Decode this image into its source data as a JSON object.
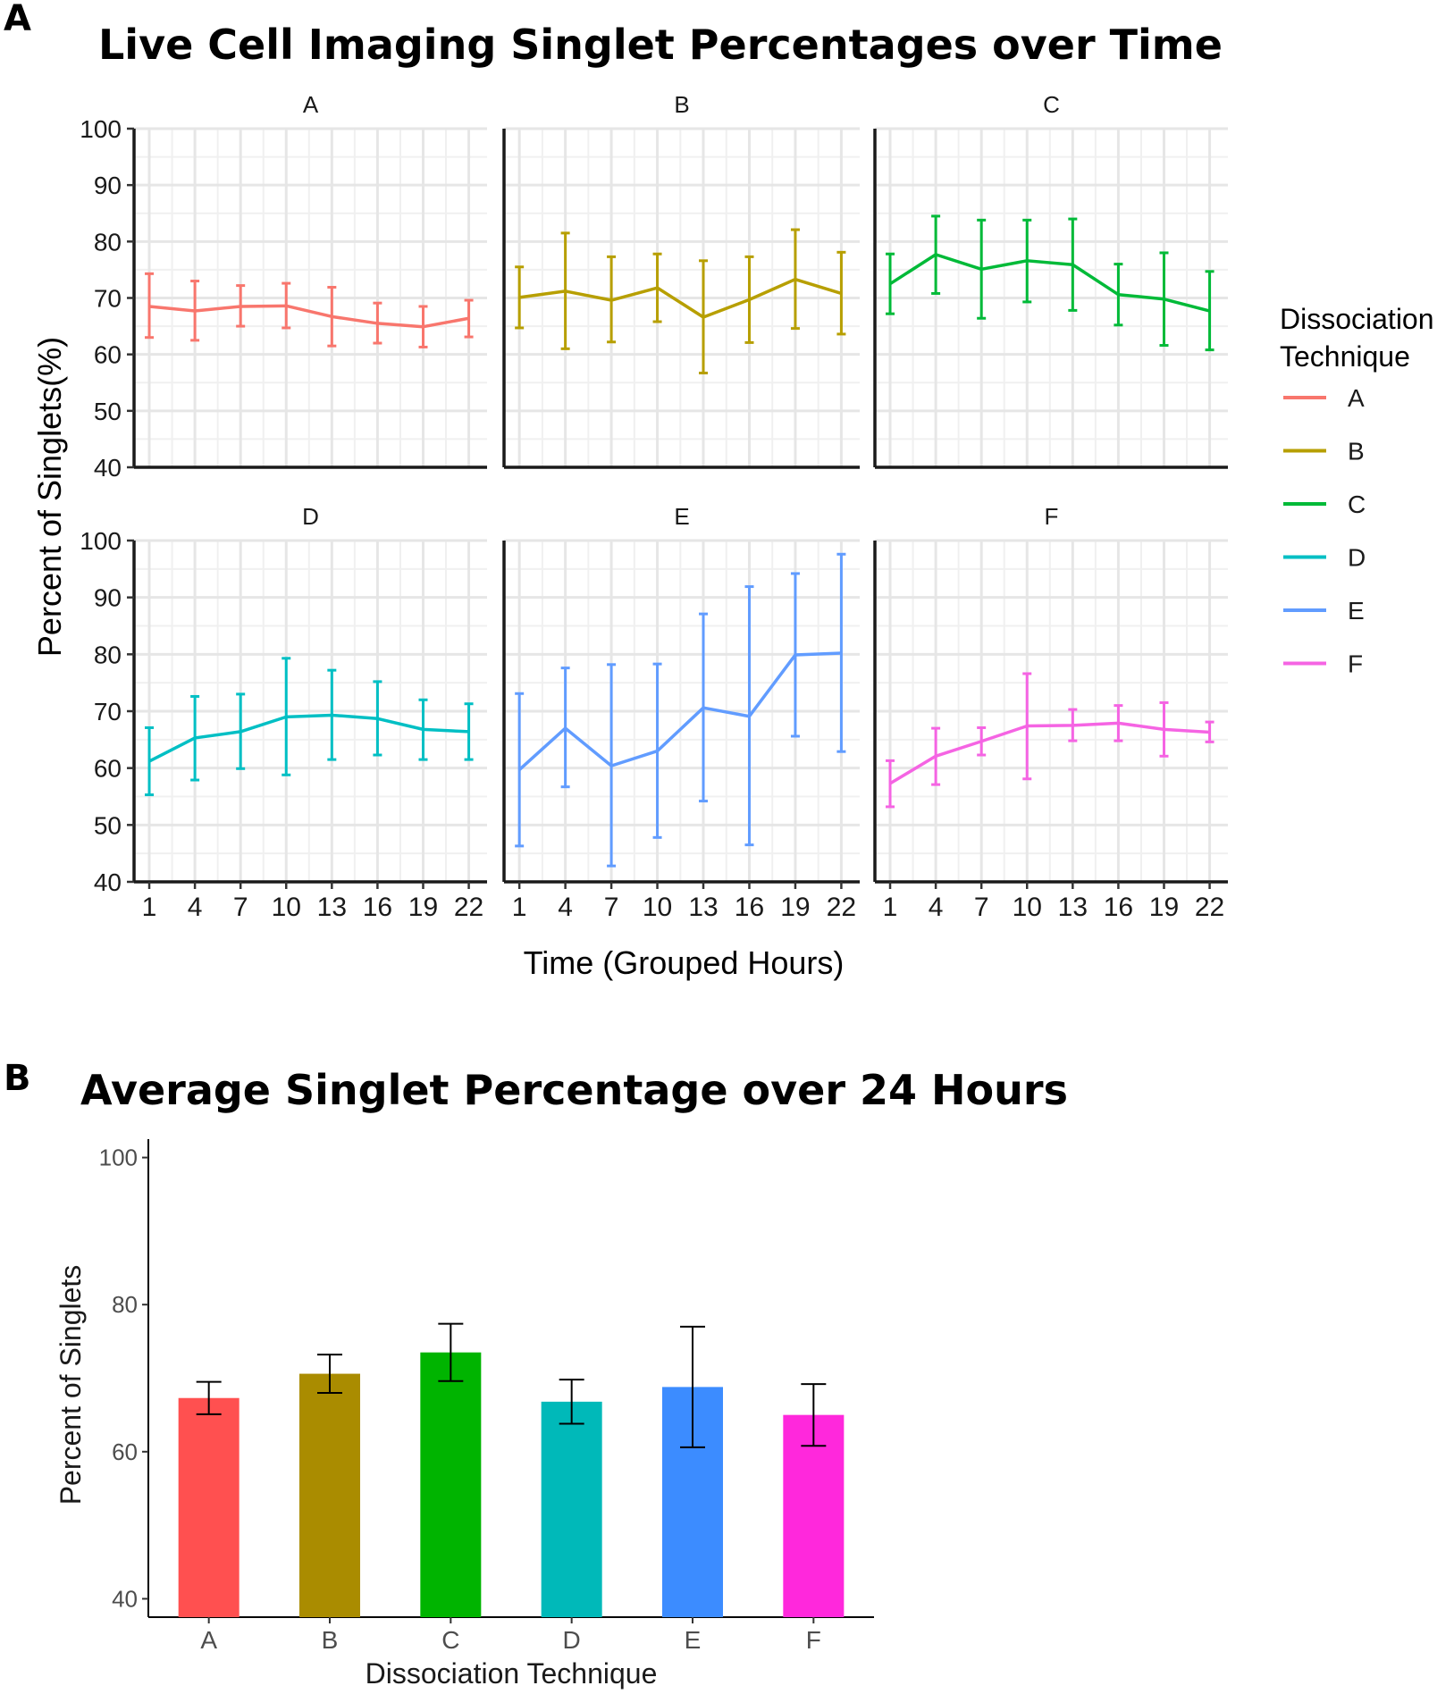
{
  "panel_a": {
    "label": "A",
    "title": "Live Cell Imaging Singlet Percentages over Time",
    "y_axis_label": "Percent of Singlets(%)",
    "x_axis_label": "Time (Grouped Hours)",
    "legend_title_line1": "Dissociation",
    "legend_title_line2": "Technique"
  },
  "panel_b": {
    "label": "B",
    "title": "Average Singlet Percentage over 24 Hours",
    "y_axis_label": "Percent of Singlets",
    "x_axis_label": "Dissociation Technique"
  },
  "colors": {
    "A": "#f8766d",
    "B": "#b79f00",
    "C": "#00ba38",
    "D": "#00bfc4",
    "E": "#619cff",
    "F": "#f564e3",
    "bar_A": "#ff5050",
    "bar_B": "#aa8c00",
    "bar_C": "#00b400",
    "bar_D": "#00b9b9",
    "bar_E": "#3c8cff",
    "bar_F": "#ff28dc"
  },
  "chart_data": [
    {
      "type": "line",
      "title": "Live Cell Imaging Singlet Percentages over Time",
      "xlabel": "Time (Grouped Hours)",
      "ylabel": "Percent of Singlets(%)",
      "x": [
        1,
        4,
        7,
        10,
        13,
        16,
        19,
        22
      ],
      "x_tick_labels": [
        "1",
        "4",
        "7",
        "10",
        "13",
        "16",
        "19",
        "22"
      ],
      "ylim": [
        40,
        100
      ],
      "y_ticks": [
        40,
        50,
        60,
        70,
        80,
        90,
        100
      ],
      "legend": {
        "title": "Dissociation Technique",
        "placement": "right",
        "entries": [
          "A",
          "B",
          "C",
          "D",
          "E",
          "F"
        ]
      },
      "facets": [
        {
          "name": "A",
          "mean": [
            68.5,
            67.7,
            68.5,
            68.6,
            66.7,
            65.5,
            64.9,
            66.4
          ],
          "lower": [
            63.0,
            62.5,
            65.0,
            64.7,
            61.5,
            62.0,
            61.3,
            63.1
          ],
          "upper": [
            74.3,
            73.0,
            72.2,
            72.6,
            71.9,
            69.1,
            68.5,
            69.6
          ]
        },
        {
          "name": "B",
          "mean": [
            70.1,
            71.2,
            69.6,
            71.8,
            66.6,
            69.7,
            73.3,
            70.8
          ],
          "lower": [
            64.7,
            61.0,
            62.2,
            65.8,
            56.7,
            62.1,
            64.6,
            63.6
          ],
          "upper": [
            75.5,
            81.5,
            77.3,
            77.8,
            76.6,
            77.3,
            82.1,
            78.1
          ]
        },
        {
          "name": "C",
          "mean": [
            72.5,
            77.7,
            75.1,
            76.6,
            75.9,
            70.6,
            69.8,
            67.7
          ],
          "lower": [
            67.2,
            70.8,
            66.4,
            69.3,
            67.8,
            65.2,
            61.6,
            60.8
          ],
          "upper": [
            77.8,
            84.5,
            83.8,
            83.8,
            84.0,
            76.0,
            78.0,
            74.7
          ]
        },
        {
          "name": "D",
          "mean": [
            61.2,
            65.3,
            66.4,
            69.0,
            69.3,
            68.7,
            66.8,
            66.4
          ],
          "lower": [
            55.3,
            57.9,
            59.9,
            58.8,
            61.5,
            62.3,
            61.5,
            61.5
          ],
          "upper": [
            67.1,
            72.6,
            73.0,
            79.3,
            77.2,
            75.2,
            72.0,
            71.3
          ]
        },
        {
          "name": "E",
          "mean": [
            59.7,
            67.0,
            60.4,
            63.0,
            70.6,
            69.1,
            79.9,
            80.2
          ],
          "lower": [
            46.3,
            56.7,
            42.8,
            47.8,
            54.2,
            46.5,
            65.6,
            62.9
          ],
          "upper": [
            73.1,
            77.6,
            78.2,
            78.3,
            87.1,
            91.9,
            94.2,
            97.6
          ]
        },
        {
          "name": "F",
          "mean": [
            57.3,
            62.1,
            64.7,
            67.4,
            67.5,
            67.9,
            66.8,
            66.3
          ],
          "lower": [
            53.2,
            57.1,
            62.3,
            58.1,
            64.8,
            64.8,
            62.1,
            64.6
          ],
          "upper": [
            61.3,
            67.0,
            67.1,
            76.6,
            70.3,
            71.0,
            71.5,
            68.1
          ]
        }
      ]
    },
    {
      "type": "bar",
      "title": "Average Singlet Percentage over 24 Hours",
      "xlabel": "Dissociation Technique",
      "ylabel": "Percent of Singlets",
      "categories": [
        "A",
        "B",
        "C",
        "D",
        "E",
        "F"
      ],
      "values": [
        67.3,
        70.6,
        73.5,
        66.8,
        68.8,
        65.0
      ],
      "error_lower": [
        65.1,
        68.0,
        69.6,
        63.8,
        60.6,
        60.8
      ],
      "error_upper": [
        69.5,
        73.2,
        77.4,
        69.8,
        77.0,
        69.2
      ],
      "ylim": [
        37.5,
        102.5
      ],
      "y_ticks": [
        40,
        60,
        80,
        100
      ]
    }
  ]
}
